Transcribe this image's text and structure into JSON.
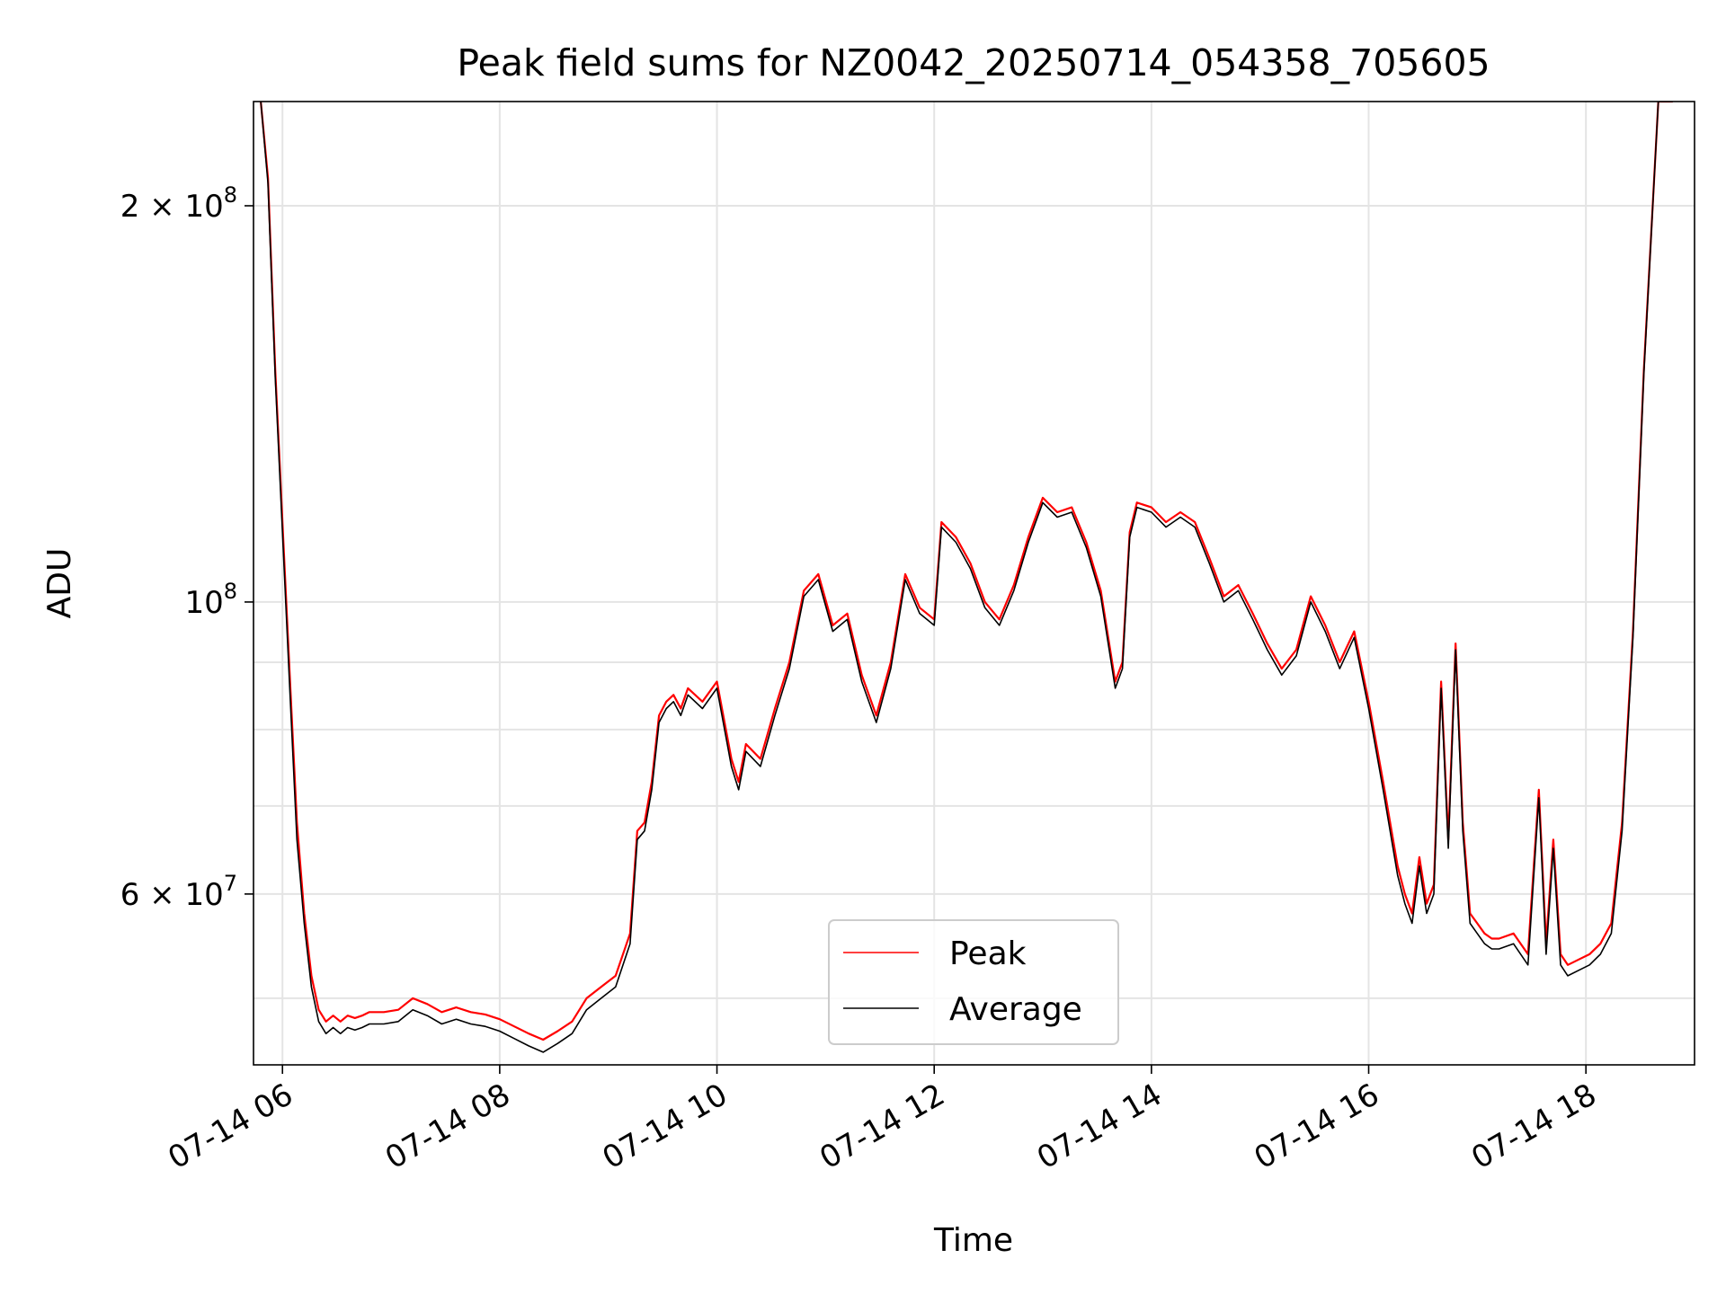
{
  "chart_data": {
    "type": "line",
    "title": "Peak field sums for NZ0042_20250714_054358_705605",
    "xlabel": "Time",
    "ylabel": "ADU",
    "y_scale": "log",
    "grid": true,
    "legend_placement": "lower-center",
    "xlim": [
      "07-14 05:44",
      "07-14 19:00"
    ],
    "ylim": [
      44500000,
      240000000
    ],
    "x_ticks": [
      "07-14 06",
      "07-14 08",
      "07-14 10",
      "07-14 12",
      "07-14 14",
      "07-14 16",
      "07-14 18"
    ],
    "y_ticks": [
      {
        "value": 200000000,
        "base": "2 × 10",
        "exp": "8"
      },
      {
        "value": 100000000,
        "base": "10",
        "exp": "8"
      },
      {
        "value": 60000000,
        "base": "6 × 10",
        "exp": "7"
      }
    ],
    "x": [
      "05:48",
      "05:52",
      "05:56",
      "06:00",
      "06:04",
      "06:08",
      "06:12",
      "06:16",
      "06:20",
      "06:24",
      "06:28",
      "06:32",
      "06:36",
      "06:40",
      "06:44",
      "06:48",
      "06:56",
      "07:04",
      "07:12",
      "07:20",
      "07:28",
      "07:36",
      "07:44",
      "07:52",
      "08:00",
      "08:08",
      "08:16",
      "08:24",
      "08:32",
      "08:40",
      "08:48",
      "08:56",
      "09:04",
      "09:12",
      "09:16",
      "09:20",
      "09:24",
      "09:28",
      "09:32",
      "09:36",
      "09:40",
      "09:44",
      "09:52",
      "10:00",
      "10:08",
      "10:12",
      "10:16",
      "10:24",
      "10:32",
      "10:40",
      "10:48",
      "10:56",
      "11:04",
      "11:12",
      "11:20",
      "11:28",
      "11:36",
      "11:44",
      "11:52",
      "12:00",
      "12:04",
      "12:12",
      "12:20",
      "12:28",
      "12:36",
      "12:44",
      "12:52",
      "13:00",
      "13:08",
      "13:16",
      "13:24",
      "13:32",
      "13:40",
      "13:44",
      "13:48",
      "13:52",
      "14:00",
      "14:08",
      "14:16",
      "14:24",
      "14:32",
      "14:40",
      "14:48",
      "14:56",
      "15:04",
      "15:12",
      "15:20",
      "15:28",
      "15:36",
      "15:44",
      "15:52",
      "16:00",
      "16:08",
      "16:16",
      "16:20",
      "16:24",
      "16:28",
      "16:32",
      "16:36",
      "16:40",
      "16:44",
      "16:48",
      "16:52",
      "16:56",
      "17:00",
      "17:04",
      "17:08",
      "17:12",
      "17:20",
      "17:28",
      "17:34",
      "17:38",
      "17:42",
      "17:46",
      "17:50",
      "17:56",
      "18:02",
      "18:08",
      "18:14",
      "18:20",
      "18:26",
      "18:32",
      "18:40",
      "18:48"
    ],
    "series": [
      {
        "name": "Peak",
        "color": "#ff0000",
        "values": [
          240000000,
          210000000,
          150000000,
          115000000,
          88000000,
          68000000,
          58000000,
          52000000,
          49000000,
          48000000,
          48500000,
          48000000,
          48500000,
          48300000,
          48500000,
          48800000,
          48800000,
          49000000,
          50000000,
          49500000,
          48800000,
          49200000,
          48800000,
          48600000,
          48200000,
          47600000,
          47000000,
          46500000,
          47200000,
          48000000,
          50000000,
          51000000,
          52000000,
          56000000,
          67000000,
          68000000,
          73000000,
          82000000,
          84000000,
          85000000,
          83000000,
          86000000,
          84000000,
          87000000,
          76000000,
          73000000,
          78000000,
          76000000,
          83000000,
          90000000,
          102000000,
          105000000,
          96000000,
          98000000,
          88000000,
          82000000,
          90000000,
          105000000,
          99000000,
          97000000,
          115000000,
          112000000,
          107000000,
          100000000,
          97000000,
          103000000,
          112000000,
          120000000,
          117000000,
          118000000,
          111000000,
          102000000,
          87000000,
          90000000,
          113000000,
          119000000,
          118000000,
          115000000,
          117000000,
          115000000,
          108000000,
          101000000,
          103000000,
          98000000,
          93000000,
          89000000,
          92000000,
          101000000,
          96000000,
          90000000,
          95000000,
          84000000,
          73000000,
          63000000,
          60000000,
          58000000,
          64000000,
          59000000,
          61000000,
          87000000,
          66000000,
          93000000,
          68000000,
          58000000,
          57000000,
          56000000,
          55500000,
          55500000,
          56000000,
          54000000,
          72000000,
          55000000,
          66000000,
          54000000,
          53000000,
          53500000,
          54000000,
          55000000,
          57000000,
          68000000,
          95000000,
          150000000,
          240000000,
          240000000
        ]
      },
      {
        "name": "Average",
        "color": "#000000",
        "values": [
          240000000,
          208000000,
          148000000,
          113000000,
          86000000,
          66000000,
          57000000,
          51000000,
          48000000,
          47000000,
          47500000,
          47000000,
          47500000,
          47300000,
          47500000,
          47800000,
          47800000,
          48000000,
          49000000,
          48500000,
          47800000,
          48200000,
          47800000,
          47600000,
          47200000,
          46600000,
          46000000,
          45500000,
          46200000,
          47000000,
          49000000,
          50000000,
          51000000,
          55000000,
          66000000,
          67000000,
          72000000,
          81000000,
          83000000,
          84000000,
          82000000,
          85000000,
          83000000,
          86000000,
          75000000,
          72000000,
          77000000,
          75000000,
          82000000,
          89000000,
          101000000,
          104000000,
          95000000,
          97000000,
          87000000,
          81000000,
          89000000,
          104000000,
          98000000,
          96000000,
          114000000,
          111000000,
          106000000,
          99000000,
          96000000,
          102000000,
          111000000,
          119000000,
          116000000,
          117000000,
          110000000,
          101000000,
          86000000,
          89000000,
          112000000,
          118000000,
          117000000,
          114000000,
          116000000,
          114000000,
          107000000,
          100000000,
          102000000,
          97000000,
          92000000,
          88000000,
          91000000,
          100000000,
          95000000,
          89000000,
          94000000,
          83000000,
          72000000,
          62000000,
          59000000,
          57000000,
          63000000,
          58000000,
          60000000,
          86000000,
          65000000,
          92000000,
          67000000,
          57000000,
          56000000,
          55000000,
          54500000,
          54500000,
          55000000,
          53000000,
          71000000,
          54000000,
          65000000,
          53000000,
          52000000,
          52500000,
          53000000,
          54000000,
          56000000,
          67000000,
          94000000,
          149000000,
          240000000,
          240000000
        ]
      }
    ]
  }
}
